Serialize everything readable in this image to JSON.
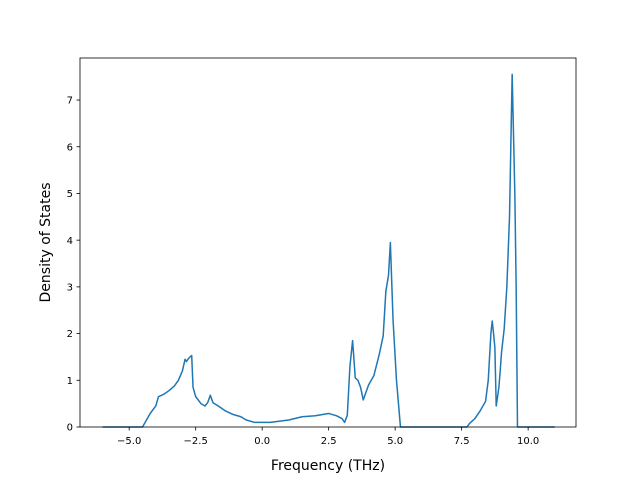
{
  "chart_data": {
    "type": "line",
    "title": "",
    "xlabel": "Frequency (THz)",
    "ylabel": "Density of States",
    "xlim": [
      -6.85,
      11.8
    ],
    "ylim": [
      0,
      7.9
    ],
    "grid": false,
    "legend": "none",
    "line_color": "#1f77b4",
    "x_ticks": [
      -5.0,
      -2.5,
      0.0,
      2.5,
      5.0,
      7.5,
      10.0
    ],
    "x_tick_labels": [
      "−5.0",
      "−2.5",
      "0.0",
      "2.5",
      "5.0",
      "7.5",
      "10.0"
    ],
    "y_ticks": [
      0,
      1,
      2,
      3,
      4,
      5,
      6,
      7
    ],
    "y_tick_labels": [
      "0",
      "1",
      "2",
      "3",
      "4",
      "5",
      "6",
      "7"
    ],
    "series": [
      {
        "x": [
          -6.0,
          -4.5,
          -4.4,
          -4.2,
          -4.0,
          -3.9,
          -3.7,
          -3.5,
          -3.3,
          -3.15,
          -3.0,
          -2.9,
          -2.85,
          -2.75,
          -2.65,
          -2.6,
          -2.5,
          -2.3,
          -2.15,
          -2.05,
          -1.95,
          -1.85,
          -1.65,
          -1.4,
          -1.1,
          -0.8,
          -0.6,
          -0.3,
          0.0,
          0.3,
          0.6,
          1.0,
          1.5,
          2.0,
          2.3,
          2.5,
          2.8,
          3.0,
          3.1,
          3.2,
          3.3,
          3.4,
          3.5,
          3.6,
          3.7,
          3.8,
          4.0,
          4.2,
          4.4,
          4.55,
          4.65,
          4.75,
          4.82,
          4.92,
          5.05,
          5.2,
          5.25,
          5.5,
          6.5,
          7.7,
          7.8,
          8.0,
          8.2,
          8.4,
          8.5,
          8.6,
          8.65,
          8.7,
          8.75,
          8.8,
          8.9,
          8.95,
          9.0,
          9.1,
          9.2,
          9.3,
          9.4,
          9.5,
          9.55,
          9.6,
          9.65,
          10.0,
          11.0
        ],
        "y": [
          0.0,
          0.0,
          0.1,
          0.3,
          0.45,
          0.65,
          0.7,
          0.78,
          0.88,
          1.0,
          1.2,
          1.45,
          1.4,
          1.48,
          1.53,
          0.85,
          0.65,
          0.5,
          0.45,
          0.52,
          0.68,
          0.52,
          0.45,
          0.35,
          0.27,
          0.22,
          0.15,
          0.1,
          0.1,
          0.1,
          0.12,
          0.15,
          0.22,
          0.24,
          0.27,
          0.29,
          0.24,
          0.18,
          0.1,
          0.25,
          1.3,
          1.85,
          1.05,
          1.0,
          0.85,
          0.58,
          0.9,
          1.1,
          1.55,
          1.95,
          2.9,
          3.25,
          3.95,
          2.3,
          1.0,
          0.0,
          0.0,
          0.0,
          0.0,
          0.0,
          0.08,
          0.18,
          0.35,
          0.55,
          1.0,
          2.0,
          2.27,
          2.0,
          1.7,
          0.45,
          0.85,
          1.2,
          1.6,
          2.1,
          3.0,
          4.5,
          7.55,
          5.0,
          3.0,
          0.0,
          0.0,
          0.0,
          0.0
        ]
      }
    ]
  }
}
